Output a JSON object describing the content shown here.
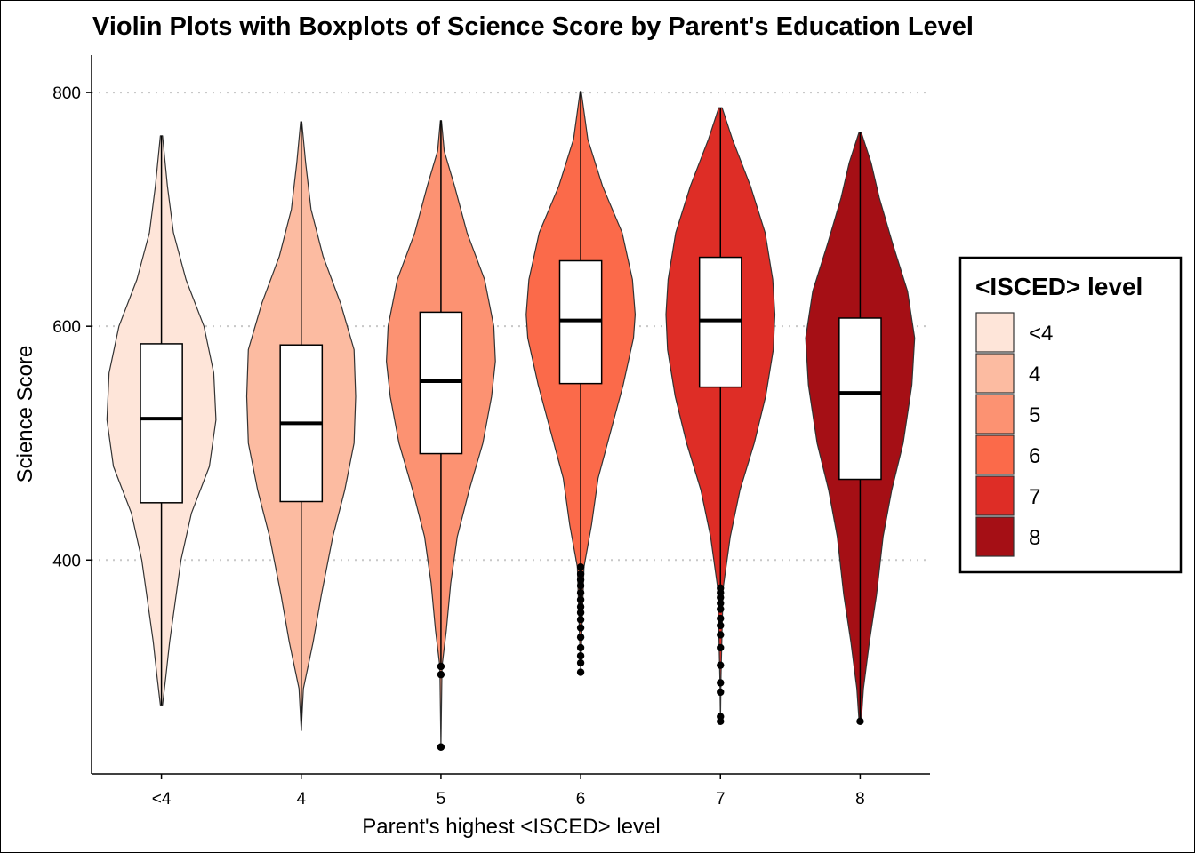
{
  "chart_data": {
    "type": "violin",
    "title": "Violin Plots with Boxplots of Science Score by Parent's Education Level",
    "xlabel": "Parent's highest <ISCED> level",
    "ylabel": "Science Score",
    "categories": [
      "<4",
      "4",
      "5",
      "6",
      "7",
      "8"
    ],
    "y_ticks": [
      400,
      600,
      800
    ],
    "ylim": [
      217,
      832
    ],
    "grid": "horizontal dotted at major ticks",
    "legend": {
      "title": "<ISCED> level",
      "placement": "right",
      "entries": [
        "<4",
        "4",
        "5",
        "6",
        "7",
        "8"
      ]
    },
    "colors": [
      "#FEE5D9",
      "#FCBBA1",
      "#FC9272",
      "#FB6A4A",
      "#DE2D26",
      "#A50F15"
    ],
    "groups": [
      {
        "category": "<4",
        "min": 276,
        "q1": 449,
        "median": 521,
        "q3": 585,
        "max": 763,
        "whisker_low": 276,
        "whisker_high": 763,
        "outliers": [],
        "density": [
          [
            276,
            0.02
          ],
          [
            300,
            0.08
          ],
          [
            330,
            0.15
          ],
          [
            360,
            0.24
          ],
          [
            400,
            0.36
          ],
          [
            440,
            0.55
          ],
          [
            480,
            0.88
          ],
          [
            520,
            1.0
          ],
          [
            560,
            0.96
          ],
          [
            600,
            0.78
          ],
          [
            640,
            0.45
          ],
          [
            680,
            0.22
          ],
          [
            720,
            0.11
          ],
          [
            763,
            0.02
          ]
        ]
      },
      {
        "category": "4",
        "min": 254,
        "q1": 450,
        "median": 517,
        "q3": 584,
        "max": 775,
        "whisker_low": 254,
        "whisker_high": 775,
        "outliers": [],
        "density": [
          [
            254,
            0.0
          ],
          [
            290,
            0.04
          ],
          [
            330,
            0.22
          ],
          [
            370,
            0.37
          ],
          [
            420,
            0.58
          ],
          [
            460,
            0.8
          ],
          [
            500,
            0.97
          ],
          [
            540,
            1.0
          ],
          [
            580,
            0.97
          ],
          [
            620,
            0.72
          ],
          [
            660,
            0.4
          ],
          [
            700,
            0.18
          ],
          [
            740,
            0.08
          ],
          [
            775,
            0.01
          ]
        ]
      },
      {
        "category": "5",
        "min": 240,
        "q1": 491,
        "median": 553,
        "q3": 612,
        "max": 776,
        "whisker_low": 309,
        "whisker_high": 776,
        "outliers": [
          309,
          302,
          240
        ],
        "density": [
          [
            240,
            0.0
          ],
          [
            309,
            0.02
          ],
          [
            340,
            0.1
          ],
          [
            380,
            0.18
          ],
          [
            420,
            0.3
          ],
          [
            460,
            0.52
          ],
          [
            500,
            0.77
          ],
          [
            540,
            0.93
          ],
          [
            570,
            1.0
          ],
          [
            600,
            0.97
          ],
          [
            640,
            0.8
          ],
          [
            680,
            0.48
          ],
          [
            720,
            0.25
          ],
          [
            750,
            0.06
          ],
          [
            776,
            0.01
          ]
        ]
      },
      {
        "category": "6",
        "min": 304,
        "q1": 551,
        "median": 605,
        "q3": 656,
        "max": 801,
        "whisker_low": 394,
        "whisker_high": 801,
        "outliers": [
          394,
          388,
          383,
          378,
          372,
          366,
          360,
          355,
          349,
          342,
          334,
          325,
          318,
          312,
          304
        ],
        "density": [
          [
            304,
            0.0
          ],
          [
            350,
            0.03
          ],
          [
            394,
            0.06
          ],
          [
            430,
            0.2
          ],
          [
            470,
            0.32
          ],
          [
            510,
            0.55
          ],
          [
            550,
            0.78
          ],
          [
            590,
            0.97
          ],
          [
            610,
            1.0
          ],
          [
            640,
            0.95
          ],
          [
            680,
            0.76
          ],
          [
            720,
            0.4
          ],
          [
            760,
            0.13
          ],
          [
            801,
            0.01
          ]
        ]
      },
      {
        "category": "7",
        "min": 262,
        "q1": 548,
        "median": 605,
        "q3": 659,
        "max": 787,
        "whisker_low": 376,
        "whisker_high": 787,
        "outliers": [
          376,
          372,
          368,
          363,
          358,
          350,
          344,
          336,
          325,
          310,
          295,
          287,
          266,
          262
        ],
        "density": [
          [
            262,
            0.0
          ],
          [
            300,
            0.01
          ],
          [
            340,
            0.03
          ],
          [
            376,
            0.05
          ],
          [
            420,
            0.18
          ],
          [
            460,
            0.36
          ],
          [
            500,
            0.62
          ],
          [
            540,
            0.83
          ],
          [
            580,
            0.97
          ],
          [
            610,
            1.0
          ],
          [
            640,
            0.96
          ],
          [
            680,
            0.82
          ],
          [
            720,
            0.55
          ],
          [
            760,
            0.22
          ],
          [
            787,
            0.03
          ]
        ]
      },
      {
        "category": "8",
        "min": 262,
        "q1": 469,
        "median": 543,
        "q3": 607,
        "max": 766,
        "whisker_low": 262,
        "whisker_high": 766,
        "outliers": [
          262
        ],
        "density": [
          [
            262,
            0.02
          ],
          [
            290,
            0.06
          ],
          [
            330,
            0.17
          ],
          [
            370,
            0.3
          ],
          [
            420,
            0.42
          ],
          [
            460,
            0.58
          ],
          [
            500,
            0.79
          ],
          [
            550,
            0.95
          ],
          [
            590,
            1.0
          ],
          [
            630,
            0.87
          ],
          [
            670,
            0.6
          ],
          [
            710,
            0.35
          ],
          [
            740,
            0.2
          ],
          [
            766,
            0.02
          ]
        ]
      }
    ]
  }
}
